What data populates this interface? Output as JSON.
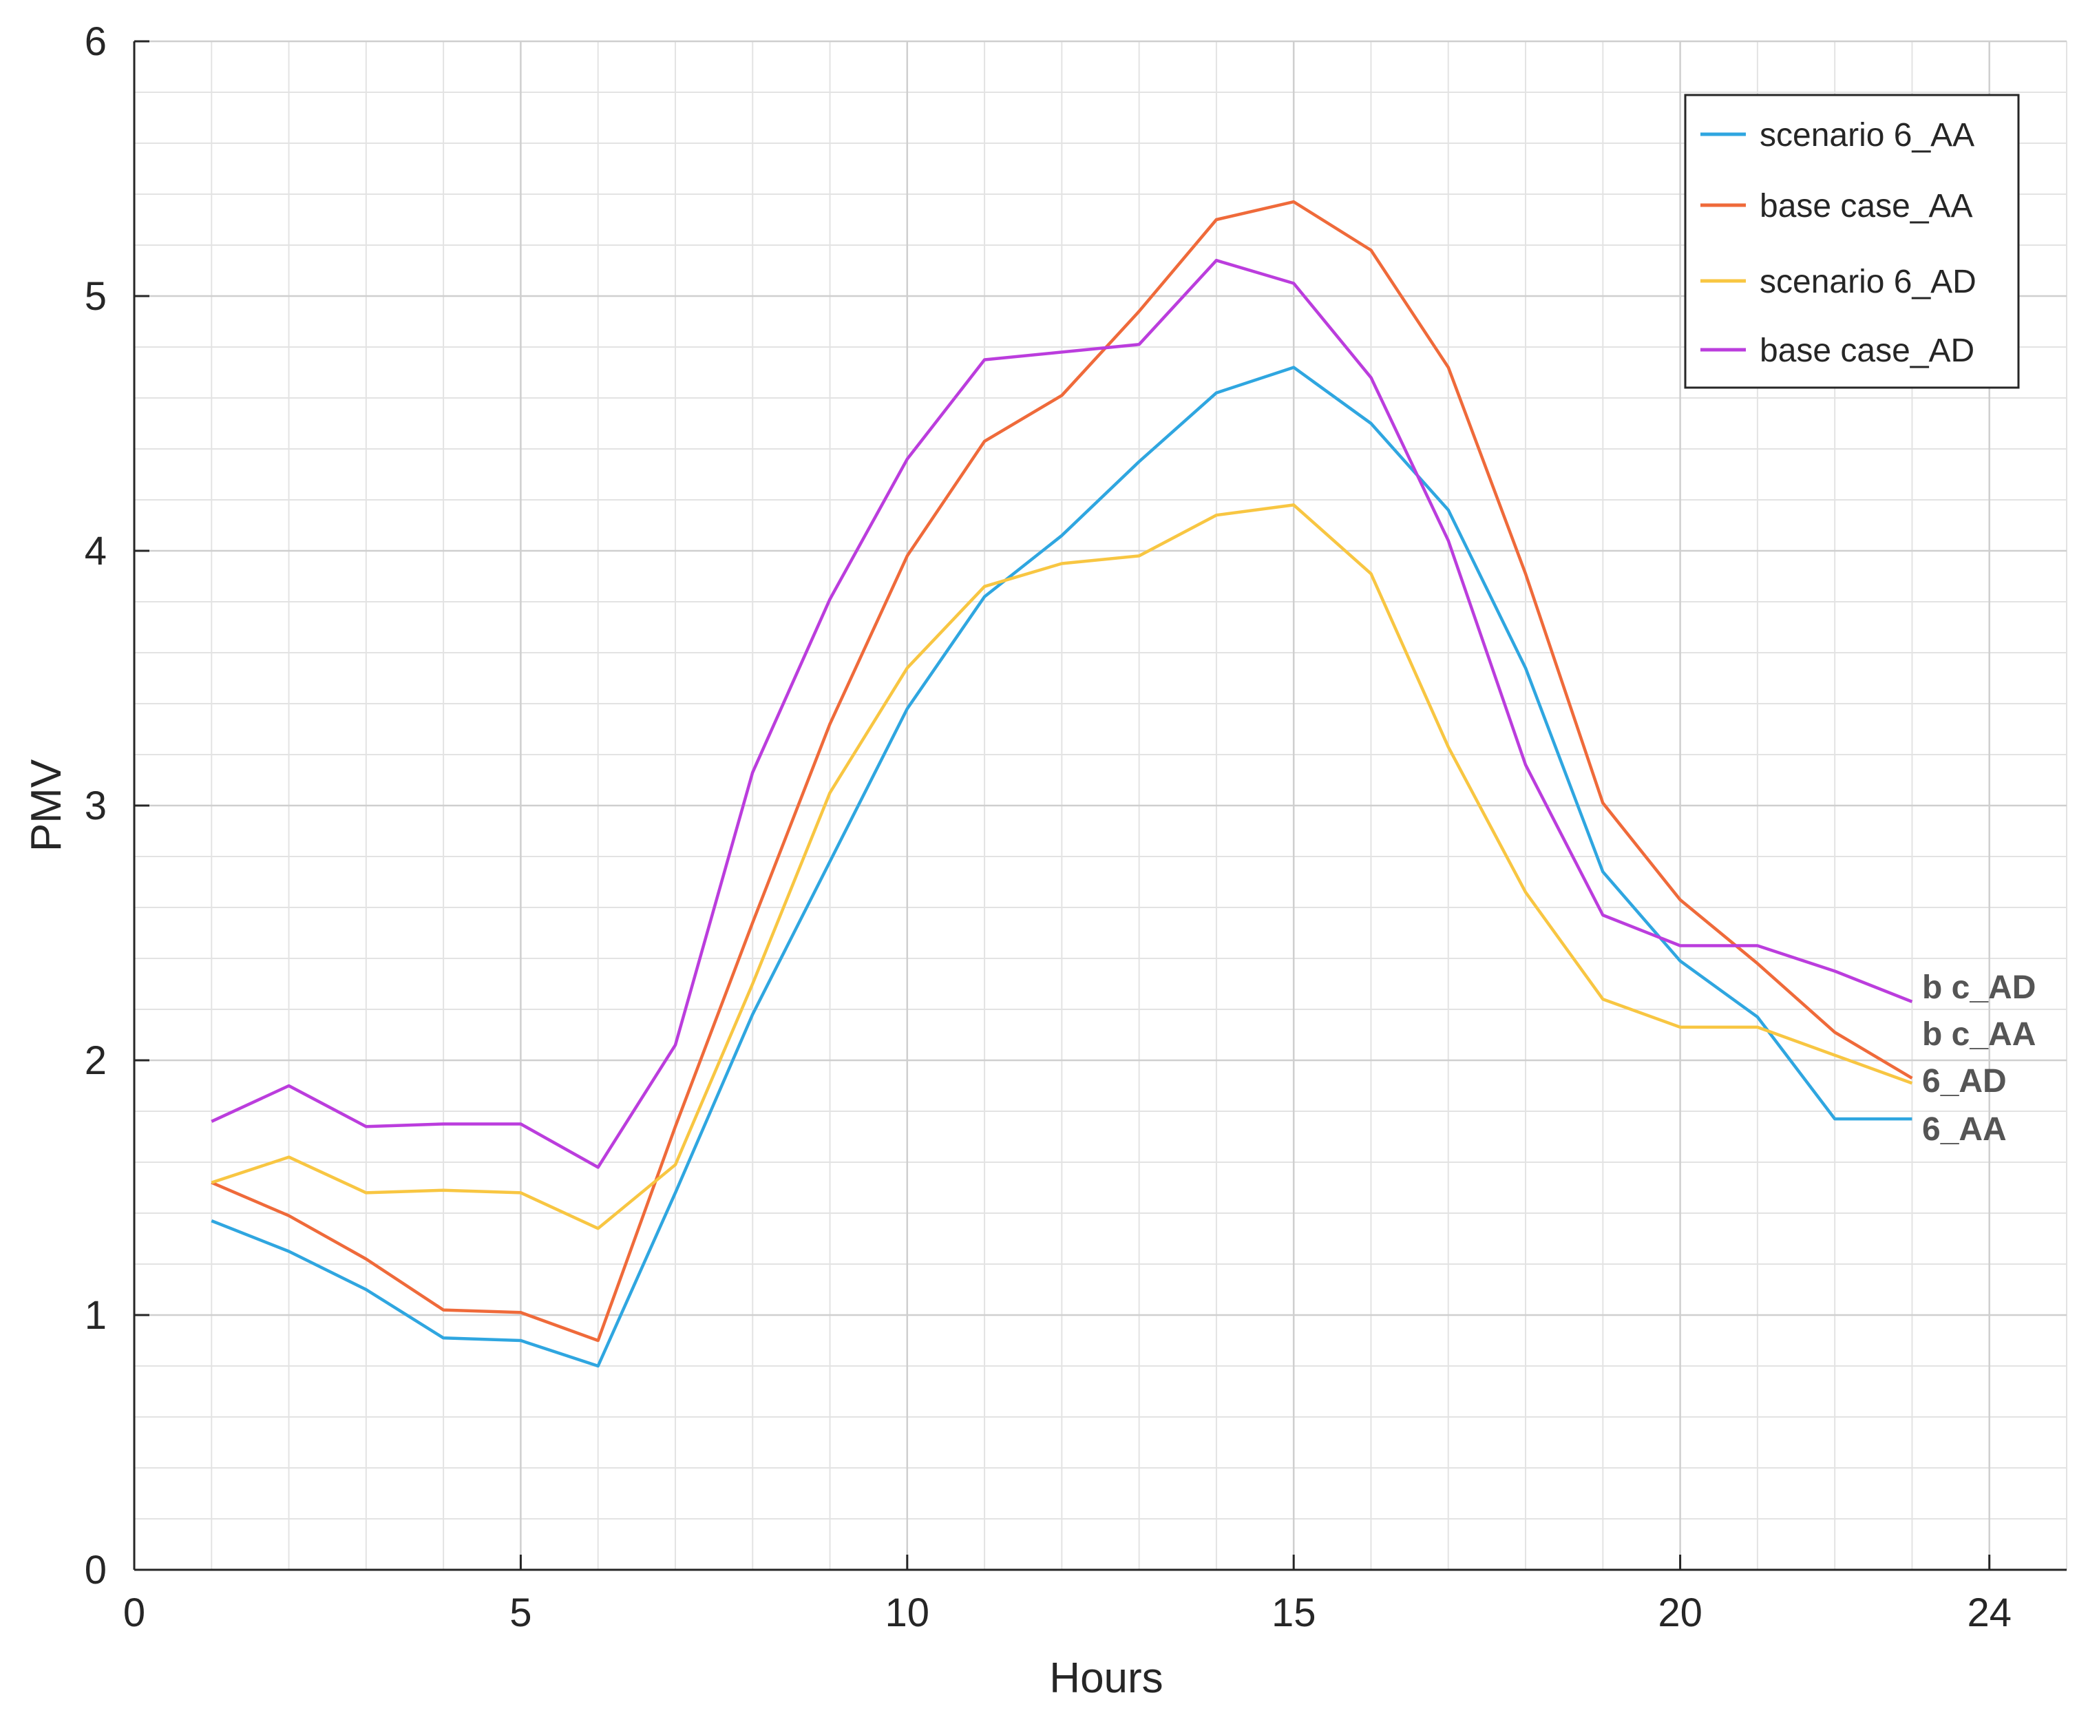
{
  "chart_data": {
    "type": "line",
    "title": "",
    "xlabel": "Hours",
    "ylabel": "PMV",
    "xlim": [
      0,
      25
    ],
    "ylim": [
      0,
      6
    ],
    "xticks": [
      0,
      5,
      10,
      15,
      20,
      24
    ],
    "xtick_labels": [
      "0",
      "5",
      "10",
      "15",
      "20",
      "24"
    ],
    "yticks": [
      0,
      1,
      2,
      3,
      4,
      5,
      6
    ],
    "ytick_labels": [
      "0",
      "1",
      "2",
      "3",
      "4",
      "5",
      "6"
    ],
    "grid": true,
    "legend_position": "top-right",
    "x": [
      1,
      2,
      3,
      4,
      5,
      6,
      7,
      8,
      9,
      10,
      11,
      12,
      13,
      14,
      15,
      16,
      17,
      18,
      19,
      20,
      21,
      22,
      23
    ],
    "series": [
      {
        "name": "scenario 6_AA",
        "color": "#2fa6e0",
        "end_label": "6_AA",
        "values": [
          1.37,
          1.25,
          1.1,
          0.91,
          0.9,
          0.8,
          1.48,
          2.18,
          2.78,
          3.38,
          3.82,
          4.06,
          4.35,
          4.62,
          4.72,
          4.5,
          4.16,
          3.54,
          2.74,
          2.39,
          2.17,
          1.77,
          1.77
        ]
      },
      {
        "name": "base case_AA",
        "color": "#ef6a3a",
        "end_label": "b c_AA",
        "values": [
          1.52,
          1.39,
          1.22,
          1.02,
          1.01,
          0.9,
          1.74,
          2.54,
          3.32,
          3.98,
          4.43,
          4.61,
          4.94,
          5.3,
          5.37,
          5.18,
          4.72,
          3.91,
          3.01,
          2.63,
          2.38,
          2.11,
          1.93
        ]
      },
      {
        "name": "scenario 6_AD",
        "color": "#f8c642",
        "end_label": "6_AD",
        "values": [
          1.52,
          1.62,
          1.48,
          1.49,
          1.48,
          1.34,
          1.59,
          2.3,
          3.05,
          3.54,
          3.86,
          3.95,
          3.98,
          4.14,
          4.18,
          3.91,
          3.23,
          2.66,
          2.24,
          2.13,
          2.13,
          2.02,
          1.91
        ]
      },
      {
        "name": "base case_AD",
        "color": "#bb3ddd",
        "end_label": "b c_AD",
        "values": [
          1.76,
          1.9,
          1.74,
          1.75,
          1.75,
          1.58,
          2.06,
          3.13,
          3.81,
          4.36,
          4.75,
          4.78,
          4.81,
          5.14,
          5.05,
          4.68,
          4.04,
          3.16,
          2.57,
          2.45,
          2.45,
          2.35,
          2.23
        ]
      }
    ]
  }
}
